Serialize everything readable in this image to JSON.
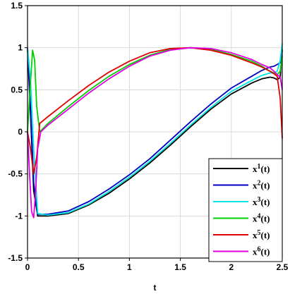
{
  "chart_data": {
    "type": "line",
    "xlabel": "t",
    "ylabel": "",
    "xlim": [
      0,
      2.5
    ],
    "ylim": [
      -1.5,
      1.5
    ],
    "xticks": [
      "0",
      "0.5",
      "1",
      "1.5",
      "2",
      "2.5"
    ],
    "yticks": [
      "-1.5",
      "-1",
      "-0.5",
      "0",
      "0.5",
      "1",
      "1.5"
    ],
    "grid": true,
    "legend_position": "bottom-right",
    "series": [
      {
        "name": "x1(t)",
        "base": "x",
        "sup": "1",
        "suffix": "(t)",
        "color": "#000000",
        "x": [
          0,
          0.03,
          0.06,
          0.1,
          0.2,
          0.4,
          0.6,
          0.8,
          1.0,
          1.2,
          1.4,
          1.6,
          1.8,
          2.0,
          2.2,
          2.3,
          2.38,
          2.42,
          2.45,
          2.48,
          2.5
        ],
        "y": [
          1.0,
          0.2,
          -0.7,
          -1.0,
          -1.0,
          -0.97,
          -0.87,
          -0.73,
          -0.56,
          -0.37,
          -0.16,
          0.06,
          0.27,
          0.45,
          0.58,
          0.63,
          0.65,
          0.64,
          0.62,
          0.65,
          0.98
        ]
      },
      {
        "name": "x2(t)",
        "base": "x",
        "sup": "2",
        "suffix": "(t)",
        "color": "#0000c0",
        "x": [
          0,
          0.03,
          0.06,
          0.1,
          0.2,
          0.4,
          0.6,
          0.8,
          1.0,
          1.2,
          1.4,
          1.6,
          1.8,
          2.0,
          2.2,
          2.3,
          2.38,
          2.42,
          2.45,
          2.48,
          2.5
        ],
        "y": [
          1.0,
          0.3,
          -0.6,
          -0.98,
          -0.98,
          -0.94,
          -0.83,
          -0.68,
          -0.51,
          -0.32,
          -0.1,
          0.12,
          0.33,
          0.52,
          0.66,
          0.73,
          0.77,
          0.78,
          0.8,
          0.82,
          0.96
        ]
      },
      {
        "name": "x3(t)",
        "base": "x",
        "sup": "3",
        "suffix": "(t)",
        "color": "#00e5e5",
        "x": [
          0,
          0.03,
          0.06,
          0.1,
          0.2,
          0.4,
          0.6,
          0.8,
          1.0,
          1.2,
          1.4,
          1.6,
          1.8,
          2.0,
          2.2,
          2.3,
          2.38,
          2.42,
          2.45,
          2.48,
          2.5
        ],
        "y": [
          1.0,
          0.6,
          -0.2,
          -0.97,
          -0.99,
          -0.96,
          -0.86,
          -0.71,
          -0.54,
          -0.35,
          -0.14,
          0.08,
          0.29,
          0.48,
          0.61,
          0.67,
          0.7,
          0.7,
          0.72,
          0.85,
          1.05
        ]
      },
      {
        "name": "x4(t)",
        "base": "x",
        "sup": "4",
        "suffix": "(t)",
        "color": "#00d000",
        "x": [
          0,
          0.03,
          0.05,
          0.07,
          0.09,
          0.12,
          0.2,
          0.4,
          0.6,
          0.8,
          1.0,
          1.2,
          1.4,
          1.6,
          1.8,
          2.0,
          2.2,
          2.3,
          2.38,
          2.42,
          2.45,
          2.48,
          2.5
        ],
        "y": [
          0.0,
          0.6,
          0.97,
          0.85,
          0.3,
          0.0,
          0.1,
          0.3,
          0.49,
          0.66,
          0.8,
          0.91,
          0.98,
          1.0,
          0.98,
          0.92,
          0.84,
          0.78,
          0.72,
          0.7,
          0.68,
          0.72,
          0.9
        ]
      },
      {
        "name": "x5(t)",
        "base": "x",
        "sup": "5",
        "suffix": "(t)",
        "color": "#e00000",
        "x": [
          0,
          0.03,
          0.06,
          0.09,
          0.12,
          0.2,
          0.4,
          0.6,
          0.8,
          1.0,
          1.2,
          1.4,
          1.6,
          1.8,
          2.0,
          2.2,
          2.3,
          2.38,
          2.42,
          2.45,
          2.48,
          2.5
        ],
        "y": [
          0.0,
          -0.2,
          -0.5,
          -0.3,
          0.1,
          0.18,
          0.37,
          0.55,
          0.71,
          0.84,
          0.94,
          0.99,
          1.0,
          0.97,
          0.91,
          0.82,
          0.77,
          0.72,
          0.69,
          0.66,
          0.4,
          -0.08
        ]
      },
      {
        "name": "x6(t)",
        "base": "x",
        "sup": "6",
        "suffix": "(t)",
        "color": "#e000e0",
        "x": [
          0,
          0.02,
          0.04,
          0.06,
          0.08,
          0.1,
          0.13,
          0.2,
          0.4,
          0.6,
          0.8,
          1.0,
          1.2,
          1.4,
          1.6,
          1.8,
          2.0,
          2.2,
          2.3,
          2.38,
          2.42,
          2.45,
          2.48,
          2.5
        ],
        "y": [
          0.0,
          -0.5,
          -0.95,
          -1.02,
          -0.7,
          -0.2,
          0.0,
          0.08,
          0.27,
          0.46,
          0.63,
          0.78,
          0.9,
          0.97,
          1.0,
          0.99,
          0.94,
          0.86,
          0.8,
          0.76,
          0.72,
          0.68,
          0.65,
          0.5
        ]
      }
    ]
  }
}
